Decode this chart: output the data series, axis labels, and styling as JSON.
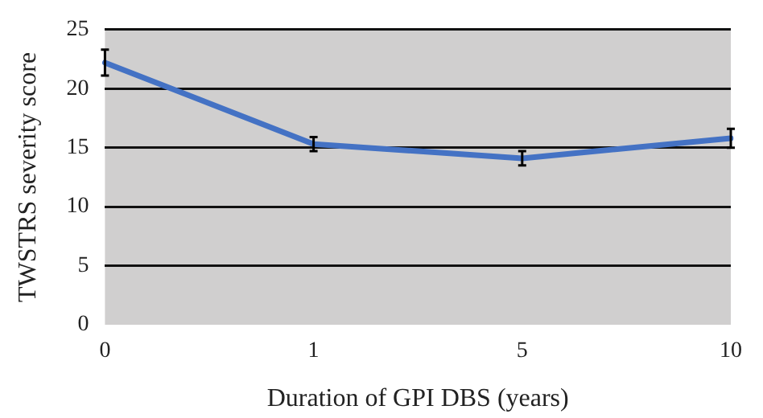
{
  "chart_data": {
    "type": "line",
    "xlabel": "Duration of GPI DBS (years)",
    "ylabel": "TWSTRS severity score",
    "categories": [
      "0",
      "1",
      "5",
      "10"
    ],
    "series": [
      {
        "color": "#4472c4",
        "values": [
          22.2,
          15.3,
          14.1,
          15.8
        ],
        "errors": [
          1.1,
          0.6,
          0.6,
          0.8
        ]
      }
    ],
    "ylim": [
      0,
      25
    ],
    "yticks": [
      0,
      5,
      10,
      15,
      20,
      25
    ],
    "grid": "y",
    "legend": false,
    "marker": "none",
    "line_style": "solid"
  }
}
